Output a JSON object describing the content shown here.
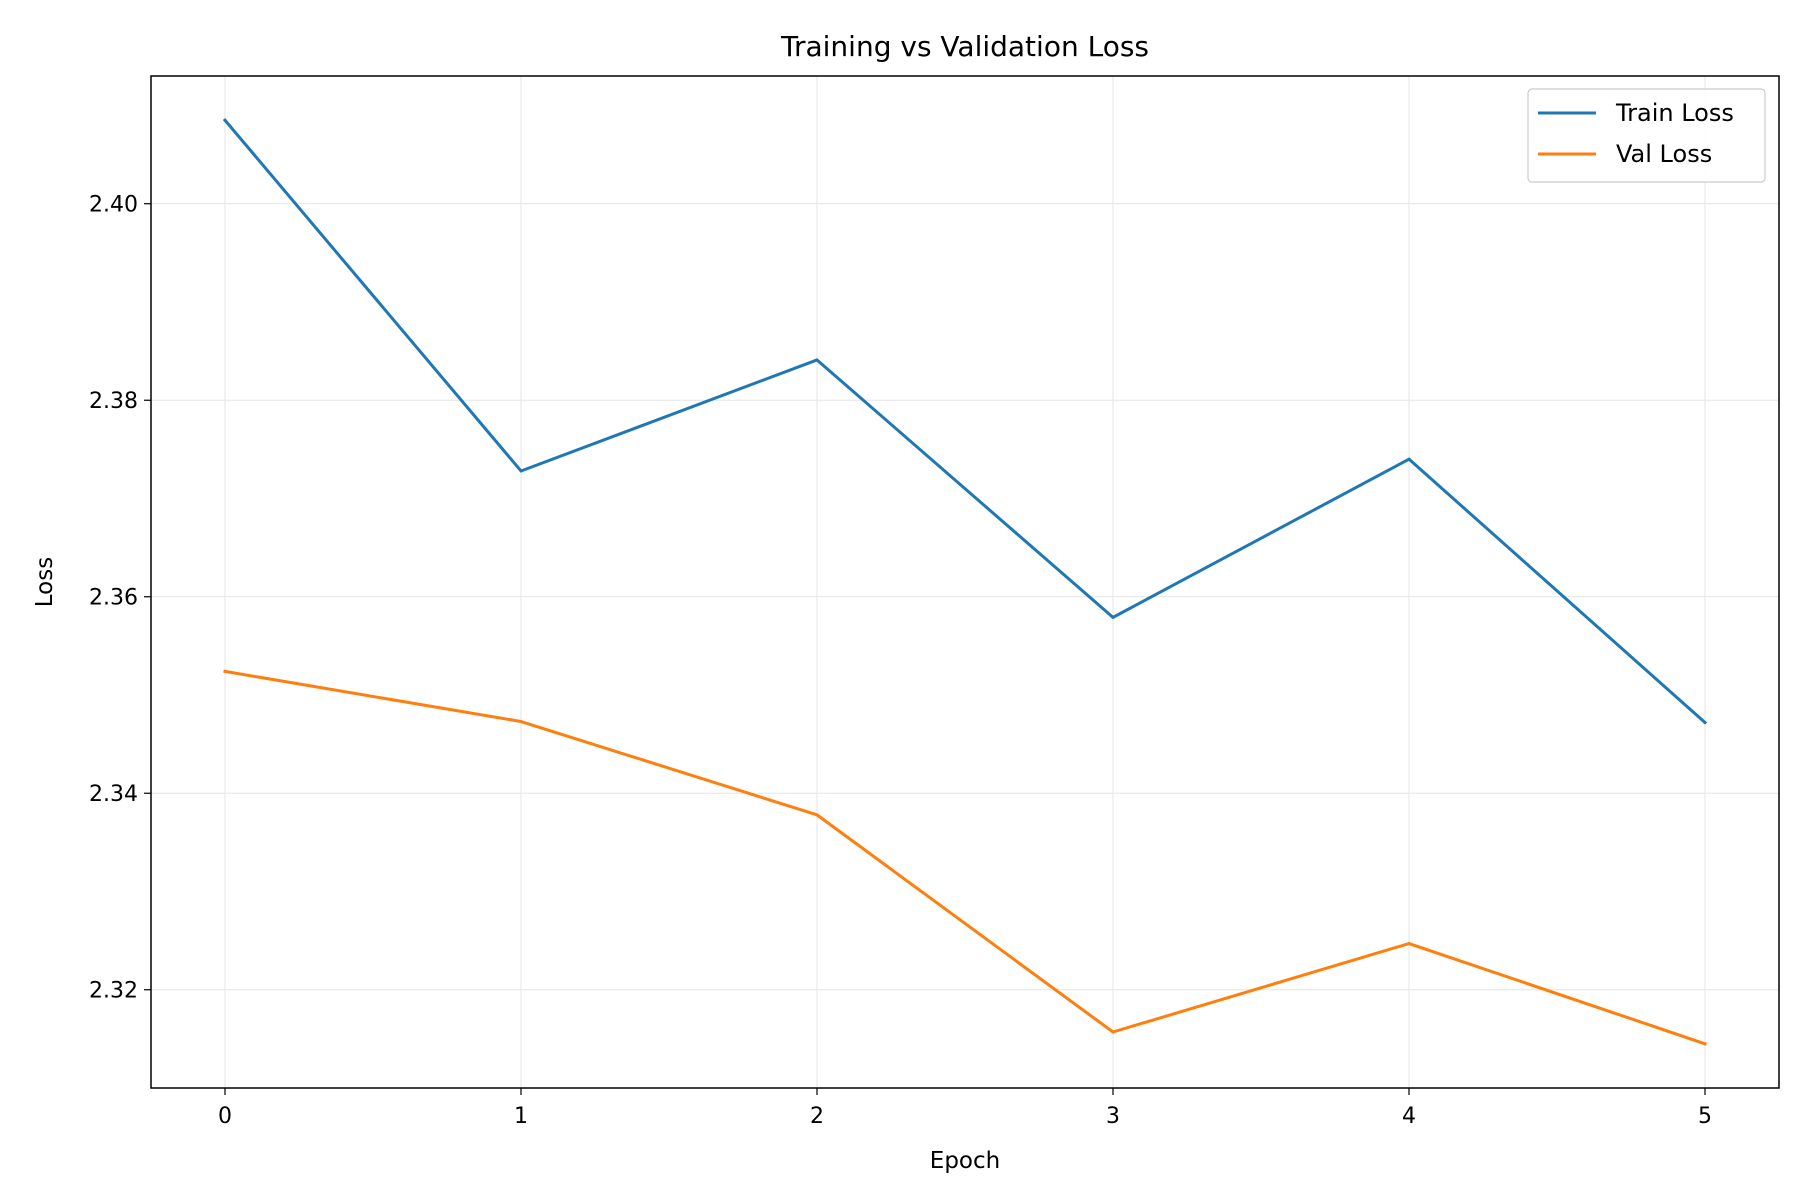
{
  "chart_data": {
    "type": "line",
    "title": "Training vs Validation Loss",
    "xlabel": "Epoch",
    "ylabel": "Loss",
    "x": [
      0,
      1,
      2,
      3,
      4,
      5
    ],
    "x_ticks": [
      0,
      1,
      2,
      3,
      4,
      5
    ],
    "xlim": [
      -0.25,
      5.25
    ],
    "ylim": [
      2.31,
      2.413
    ],
    "y_ticks": [
      2.32,
      2.34,
      2.36,
      2.38,
      2.4
    ],
    "y_tick_labels": [
      "2.32",
      "2.34",
      "2.36",
      "2.38",
      "2.40"
    ],
    "grid": true,
    "legend_position": "top-right",
    "series": [
      {
        "name": "Train Loss",
        "color": "#1f77b4",
        "values": [
          2.4085,
          2.3728,
          2.3841,
          2.3579,
          2.374,
          2.3472
        ]
      },
      {
        "name": "Val Loss",
        "color": "#ff7f0e",
        "values": [
          2.3524,
          2.3473,
          2.3378,
          2.3157,
          2.3247,
          2.3145
        ]
      }
    ]
  }
}
